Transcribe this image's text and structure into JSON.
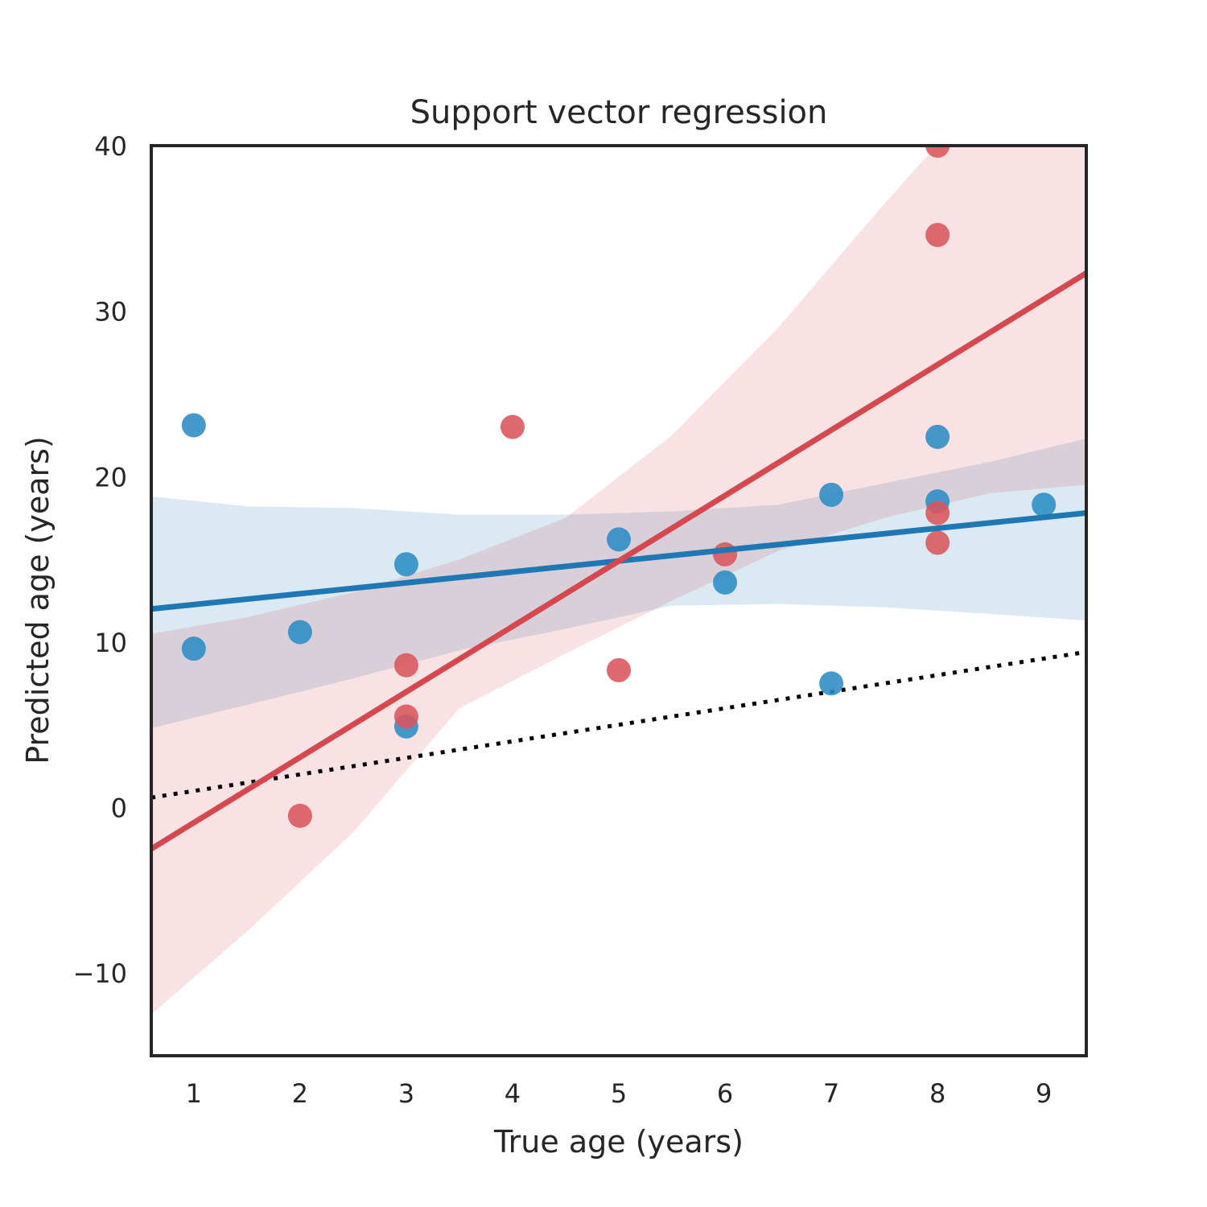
{
  "chart_data": {
    "type": "scatter",
    "title": "Support vector regression",
    "xlabel": "True age (years)",
    "ylabel": "Predicted age (years)",
    "xlim": [
      0.6,
      9.4
    ],
    "ylim": [
      -15,
      40
    ],
    "x_ticks": [
      "1",
      "2",
      "3",
      "4",
      "5",
      "6",
      "7",
      "8",
      "9"
    ],
    "y_ticks": [
      "−10",
      "0",
      "10",
      "20",
      "30",
      "40"
    ],
    "x_tick_values": [
      1,
      2,
      3,
      4,
      5,
      6,
      7,
      8,
      9
    ],
    "y_tick_values": [
      -10,
      0,
      10,
      20,
      30,
      40
    ],
    "grid": false,
    "series": [
      {
        "color": "#1f77b4",
        "points_color": "#2b8cc4",
        "points": [
          {
            "x": 1,
            "y": 23.1
          },
          {
            "x": 1,
            "y": 9.6
          },
          {
            "x": 2,
            "y": 10.6
          },
          {
            "x": 3,
            "y": 14.7
          },
          {
            "x": 3,
            "y": 4.9
          },
          {
            "x": 5,
            "y": 16.2
          },
          {
            "x": 6,
            "y": 13.6
          },
          {
            "x": 7,
            "y": 18.9
          },
          {
            "x": 7,
            "y": 7.5
          },
          {
            "x": 8,
            "y": 22.4
          },
          {
            "x": 8,
            "y": 18.5
          },
          {
            "x": 9,
            "y": 18.3
          }
        ],
        "fit": {
          "x": [
            0.6,
            9.4
          ],
          "y": [
            12.0,
            17.8
          ]
        },
        "ci_upper": [
          [
            0.6,
            18.8
          ],
          [
            1.5,
            18.2
          ],
          [
            2.5,
            18.1
          ],
          [
            3.5,
            17.7
          ],
          [
            4.5,
            17.7
          ],
          [
            5.5,
            17.9
          ],
          [
            6.5,
            18.3
          ],
          [
            7.5,
            19.6
          ],
          [
            8.5,
            20.9
          ],
          [
            9.4,
            22.3
          ]
        ],
        "ci_lower": [
          [
            0.6,
            4.8
          ],
          [
            1.5,
            6.2
          ],
          [
            2.5,
            7.8
          ],
          [
            3.5,
            9.5
          ],
          [
            4.5,
            10.8
          ],
          [
            5.5,
            12.2
          ],
          [
            6.5,
            12.3
          ],
          [
            7.5,
            12.1
          ],
          [
            8.5,
            11.7
          ],
          [
            9.4,
            11.3
          ]
        ]
      },
      {
        "color": "#d6484f",
        "points_color": "#d9555c",
        "points": [
          {
            "x": 2,
            "y": -0.5
          },
          {
            "x": 3,
            "y": 8.6
          },
          {
            "x": 3,
            "y": 5.5
          },
          {
            "x": 4,
            "y": 23.0
          },
          {
            "x": 5,
            "y": 8.3
          },
          {
            "x": 6,
            "y": 15.3
          },
          {
            "x": 8,
            "y": 40.0
          },
          {
            "x": 8,
            "y": 34.6
          },
          {
            "x": 8,
            "y": 17.8
          },
          {
            "x": 8,
            "y": 16.0
          }
        ],
        "fit": {
          "x": [
            0.6,
            9.4
          ],
          "y": [
            -2.5,
            32.3
          ]
        },
        "ci_upper": [
          [
            0.6,
            10.5
          ],
          [
            1.5,
            11.5
          ],
          [
            2.5,
            13.0
          ],
          [
            3.5,
            15.0
          ],
          [
            4.5,
            17.5
          ],
          [
            5.5,
            22.5
          ],
          [
            6.5,
            29.0
          ],
          [
            7.5,
            36.5
          ],
          [
            8.2,
            41.5
          ],
          [
            9.4,
            44.5
          ]
        ],
        "ci_lower": [
          [
            0.6,
            -12.5
          ],
          [
            1.5,
            -7.5
          ],
          [
            2.5,
            -1.5
          ],
          [
            3.5,
            6.0
          ],
          [
            4.5,
            9.3
          ],
          [
            5.5,
            12.5
          ],
          [
            6.5,
            15.5
          ],
          [
            7.5,
            17.5
          ],
          [
            8.5,
            19.0
          ],
          [
            9.4,
            19.5
          ]
        ]
      }
    ],
    "reference_line": {
      "color": "#000000",
      "style": "dotted",
      "x": [
        0.6,
        9.4
      ],
      "y": [
        0.6,
        9.4
      ]
    }
  }
}
